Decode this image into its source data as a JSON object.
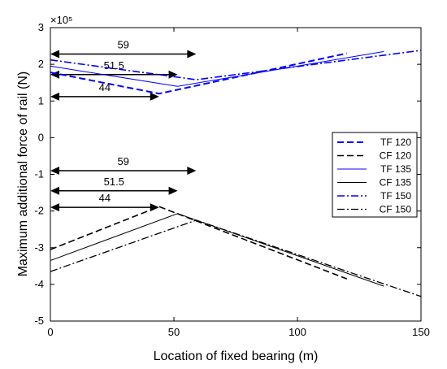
{
  "chart_data": {
    "type": "line",
    "title": "",
    "xlabel": "Location of fixed bearing (m)",
    "ylabel": "Maximum additional force of rail (N)",
    "y_exponent_label": "×10⁵",
    "xlim": [
      0,
      150
    ],
    "ylim": [
      -5,
      3
    ],
    "y_scale_factor": 100000,
    "xticks": [
      "0",
      "50",
      "100",
      "150"
    ],
    "yticks": [
      "-5",
      "-4",
      "-3",
      "-2",
      "-1",
      "0",
      "1",
      "2",
      "3"
    ],
    "grid": false,
    "legend_position": "center-right",
    "series": [
      {
        "name": "TF 120",
        "color": "#0000ff",
        "dash": "dashed",
        "width": 2.0,
        "x": [
          0,
          44,
          120
        ],
        "y": [
          1.78,
          1.2,
          2.3
        ]
      },
      {
        "name": "CF 120",
        "color": "#000000",
        "dash": "dashed",
        "width": 1.6,
        "x": [
          0,
          44,
          120
        ],
        "y": [
          -3.05,
          -1.88,
          -3.85
        ]
      },
      {
        "name": "TF 135",
        "color": "#0000ff",
        "dash": "solid",
        "width": 1.0,
        "x": [
          0,
          51.5,
          135
        ],
        "y": [
          1.95,
          1.4,
          2.35
        ]
      },
      {
        "name": "CF 135",
        "color": "#000000",
        "dash": "solid",
        "width": 1.0,
        "x": [
          0,
          51.5,
          135
        ],
        "y": [
          -3.35,
          -2.07,
          -4.05
        ]
      },
      {
        "name": "TF 150",
        "color": "#0000ff",
        "dash": "dashdot",
        "width": 1.6,
        "x": [
          0,
          59,
          150
        ],
        "y": [
          2.12,
          1.58,
          2.38
        ]
      },
      {
        "name": "CF 150",
        "color": "#000000",
        "dash": "dashdot",
        "width": 1.3,
        "x": [
          0,
          59,
          150
        ],
        "y": [
          -3.65,
          -2.25,
          -4.33
        ]
      }
    ],
    "annotations": [
      {
        "label": "59",
        "x_start": 0,
        "x_end": 59,
        "y": 2.28
      },
      {
        "label": "51.5",
        "x_start": 0,
        "x_end": 51.5,
        "y": 1.72
      },
      {
        "label": "44",
        "x_start": 0,
        "x_end": 44,
        "y": 1.12
      },
      {
        "label": "59",
        "x_start": 0,
        "x_end": 59,
        "y": -0.9
      },
      {
        "label": "51.5",
        "x_start": 0,
        "x_end": 51.5,
        "y": -1.45
      },
      {
        "label": "44",
        "x_start": 0,
        "x_end": 44,
        "y": -1.9
      }
    ]
  }
}
